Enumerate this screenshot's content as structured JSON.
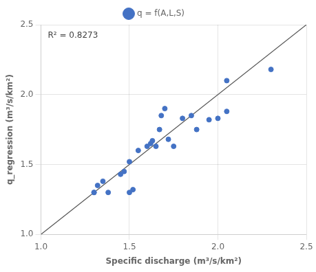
{
  "chart_data": {
    "type": "scatter",
    "x": [
      1.3,
      1.3,
      1.32,
      1.35,
      1.38,
      1.45,
      1.47,
      1.5,
      1.5,
      1.52,
      1.55,
      1.6,
      1.62,
      1.63,
      1.65,
      1.67,
      1.68,
      1.7,
      1.72,
      1.75,
      1.8,
      1.85,
      1.88,
      1.95,
      2.0,
      2.05,
      2.05,
      2.3
    ],
    "series": [
      {
        "name": "q = f(A,L,S)",
        "color": "#4472C4",
        "marker": "circle",
        "values": [
          1.3,
          1.3,
          1.35,
          1.38,
          1.3,
          1.43,
          1.45,
          1.52,
          1.3,
          1.32,
          1.6,
          1.63,
          1.65,
          1.67,
          1.63,
          1.75,
          1.85,
          1.9,
          1.68,
          1.63,
          1.83,
          1.85,
          1.75,
          1.82,
          1.83,
          2.1,
          1.88,
          2.18
        ]
      },
      {
        "type": "line",
        "color": "#555555",
        "line_style": "solid",
        "x": [
          1.0,
          2.5
        ],
        "values": [
          1.0,
          2.5
        ]
      }
    ],
    "xlabel": "Specific discharge (m³/s/km²)",
    "ylabel": "q_regression (m³/s/km²)",
    "annotation": "R² = 0.8273",
    "xlim": [
      1.0,
      2.5
    ],
    "ylim": [
      1.0,
      2.5
    ],
    "xticks": [
      {
        "value": 1.0,
        "label": "1.0"
      },
      1.5,
      {
        "value": 2.0,
        "label": "2.0"
      },
      2.5
    ],
    "yticks": [
      {
        "value": 1.0,
        "label": "1.0"
      },
      1.5,
      {
        "value": 2.0,
        "label": "2.0"
      },
      2.5
    ],
    "grid": true,
    "legend": "top"
  }
}
